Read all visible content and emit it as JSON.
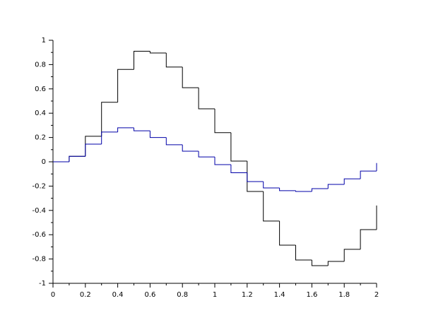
{
  "chart_data": {
    "type": "line",
    "step": "post",
    "x": [
      0,
      0.1,
      0.2,
      0.3,
      0.4,
      0.5,
      0.6,
      0.7,
      0.8,
      0.9,
      1,
      1.1,
      1.2,
      1.3,
      1.4,
      1.5,
      1.6,
      1.7,
      1.8,
      1.9,
      2
    ],
    "series": [
      {
        "color": "#000000",
        "values": [
          0,
          0.045,
          0.21,
          0.49,
          0.76,
          0.91,
          0.895,
          0.78,
          0.61,
          0.436,
          0.24,
          0.006,
          -0.244,
          -0.488,
          -0.686,
          -0.808,
          -0.855,
          -0.82,
          -0.72,
          -0.558,
          -0.36
        ]
      },
      {
        "color": "#0000a8",
        "values": [
          0,
          0.045,
          0.145,
          0.245,
          0.28,
          0.255,
          0.2,
          0.14,
          0.087,
          0.04,
          -0.023,
          -0.09,
          -0.163,
          -0.215,
          -0.238,
          -0.244,
          -0.221,
          -0.186,
          -0.14,
          -0.076,
          -0.01
        ]
      }
    ],
    "xlim": [
      0,
      2
    ],
    "ylim": [
      -1,
      1
    ],
    "xticks": [
      0,
      0.2,
      0.4,
      0.6,
      0.8,
      1,
      1.2,
      1.4,
      1.6,
      1.8,
      2
    ],
    "yticks": [
      -1,
      -0.8,
      -0.6,
      -0.4,
      -0.2,
      0,
      0.2,
      0.4,
      0.6,
      0.8,
      1
    ],
    "grid": false
  }
}
